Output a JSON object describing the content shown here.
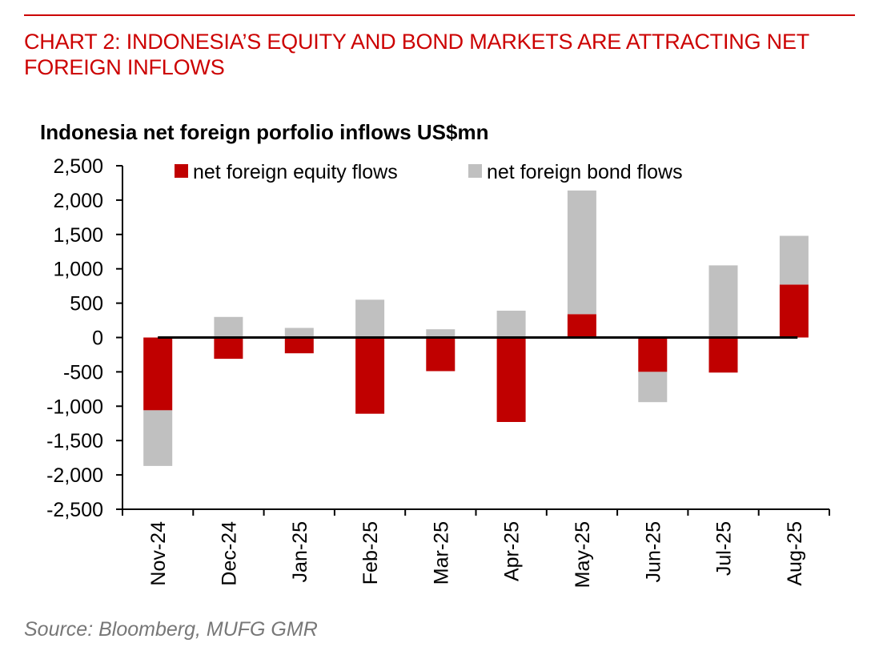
{
  "header": {
    "title_line1": "CHART 2: INDONESIA’S EQUITY AND BOND MARKETS ARE ATTRACTING NET",
    "title_line2": "FOREIGN INFLOWS"
  },
  "footer": {
    "source": "Source: Bloomberg, MUFG GMR"
  },
  "colors": {
    "accent": "#cc0000",
    "equity": "#c00000",
    "bond": "#c0c0c0",
    "source_text": "#777777"
  },
  "chart_data": {
    "type": "bar",
    "stacked": true,
    "title": "Indonesia net foreign porfolio inflows US$mn",
    "xlabel": "",
    "ylabel": "",
    "ylim": [
      -2500,
      2500
    ],
    "yticks": [
      2500,
      2000,
      1500,
      1000,
      500,
      0,
      -500,
      -1000,
      -1500,
      -2000,
      -2500
    ],
    "ytick_labels": [
      "2,500",
      "2,000",
      "1,500",
      "1,000",
      "500",
      "0",
      "-500",
      "-1,000",
      "-1,500",
      "-2,000",
      "-2,500"
    ],
    "categories": [
      "Nov-24",
      "Dec-24",
      "Jan-25",
      "Feb-25",
      "Mar-25",
      "Apr-25",
      "May-25",
      "Jun-25",
      "Jul-25",
      "Aug-25"
    ],
    "legend_position": "top",
    "series": [
      {
        "name": "net foreign equity flows",
        "values": [
          -1060,
          -310,
          -230,
          -1110,
          -490,
          -1230,
          340,
          -500,
          -510,
          770
        ]
      },
      {
        "name": "net foreign bond flows",
        "values": [
          -810,
          300,
          140,
          550,
          120,
          390,
          1800,
          -440,
          1050,
          710
        ]
      }
    ]
  }
}
